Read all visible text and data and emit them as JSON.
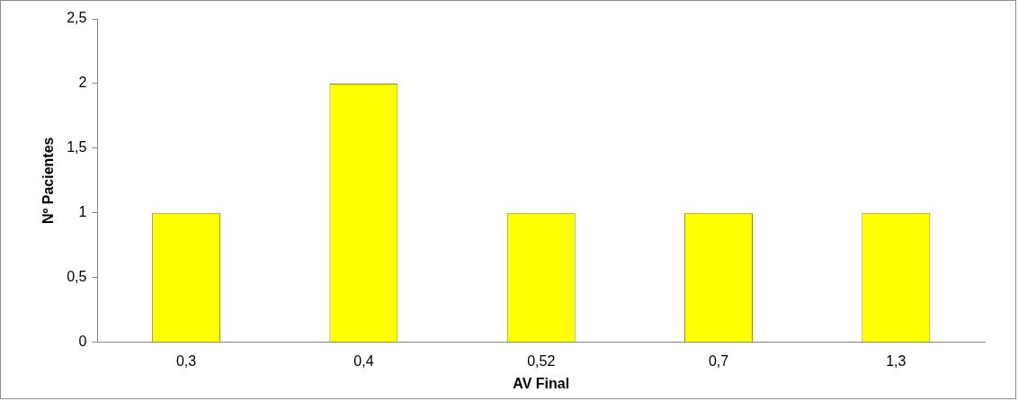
{
  "chart_data": {
    "type": "bar",
    "xlabel": "AV Final",
    "ylabel": "Nº Pacientes",
    "categories": [
      "0,3",
      "0,4",
      "0,52",
      "0,7",
      "1,3"
    ],
    "values": [
      1,
      2,
      1,
      1,
      1
    ],
    "color": "#ffff00",
    "ylim": [
      0,
      2.5
    ],
    "yticks": [
      0,
      {
        "value": 0.5,
        "label": "0,5"
      },
      1,
      {
        "value": 1.5,
        "label": "1,5"
      },
      2,
      {
        "value": 2.5,
        "label": "2,5"
      }
    ],
    "grid": false,
    "legend": false
  }
}
